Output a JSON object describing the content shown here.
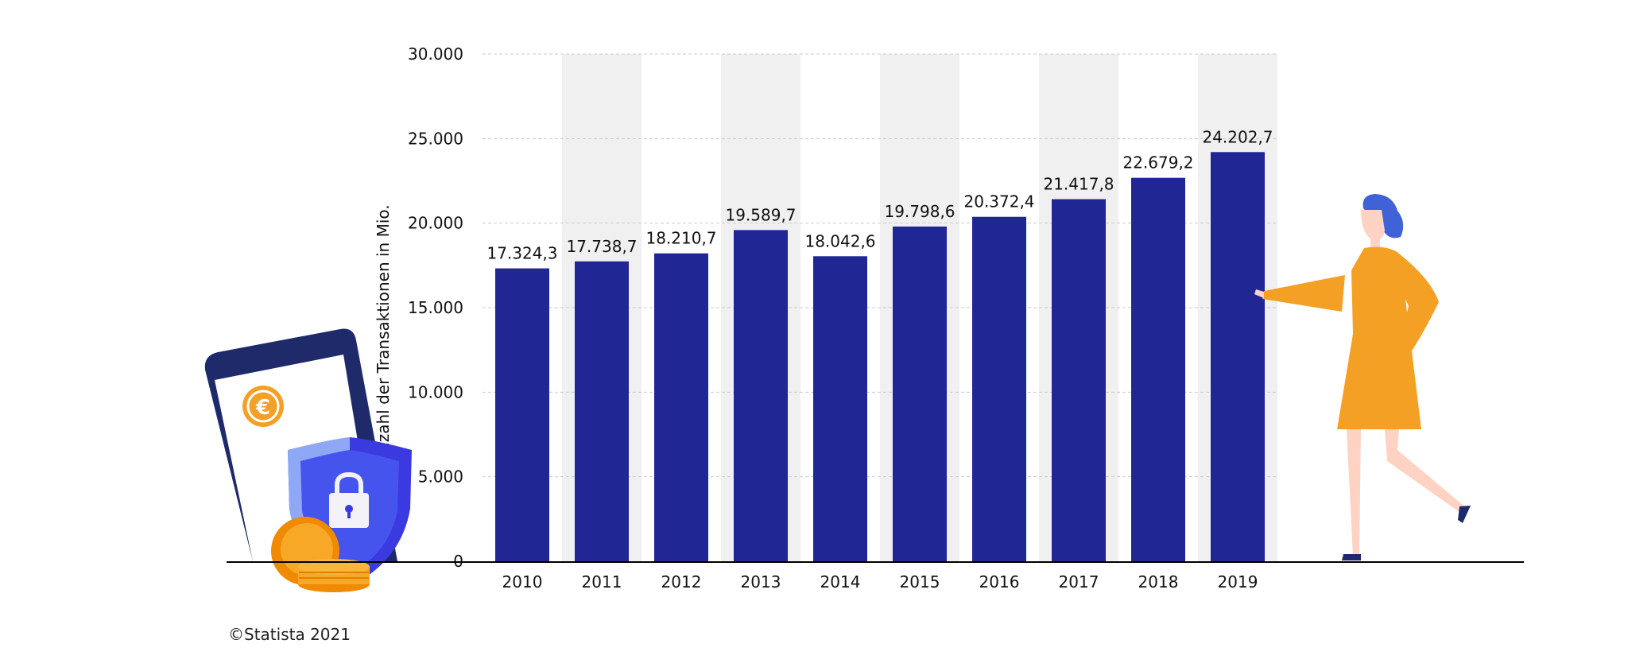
{
  "chart_data": {
    "type": "bar",
    "categories": [
      "2010",
      "2011",
      "2012",
      "2013",
      "2014",
      "2015",
      "2016",
      "2017",
      "2018",
      "2019"
    ],
    "values": [
      17324.3,
      17738.7,
      18210.7,
      19589.7,
      18042.6,
      19798.6,
      20372.4,
      21417.8,
      22679.2,
      24202.7
    ],
    "value_labels": [
      "17.324,3",
      "17.738,7",
      "18.210,7",
      "19.589,7",
      "18.042,6",
      "19.798,6",
      "20.372,4",
      "21.417,8",
      "22.679,2",
      "24.202,7"
    ],
    "y_ticks": [
      0,
      5000,
      10000,
      15000,
      20000,
      25000,
      30000
    ],
    "y_tick_labels": [
      "0",
      "5.000",
      "10.000",
      "15.000",
      "20.000",
      "25.000",
      "30.000"
    ],
    "ylim": [
      0,
      30000
    ],
    "ylabel": "Anzahl der Transaktionen in Mio.",
    "grid": true,
    "alternating_column_shading": true
  },
  "colors": {
    "bar": "#212695",
    "grid": "#cccccc",
    "shade": "#f0f0f0",
    "axis": "#000000"
  },
  "source": "©Statista 2021",
  "illustrations": [
    "smartphone-euro-icon",
    "security-shield-lock-icon",
    "coins-icon",
    "woman-pointing-illustration"
  ]
}
